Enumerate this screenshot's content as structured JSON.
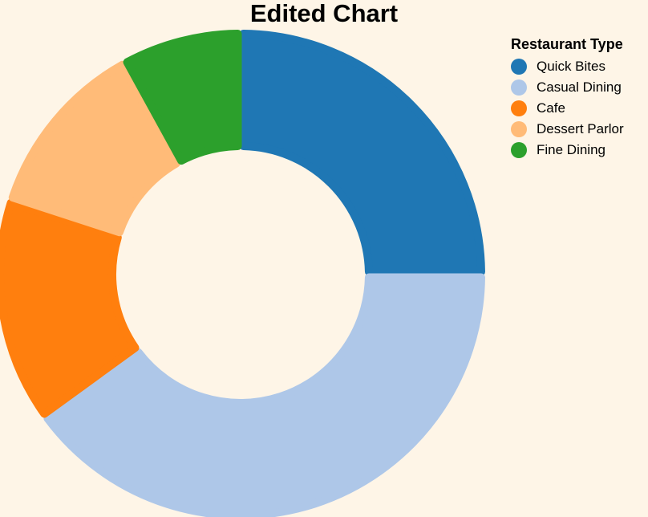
{
  "chart_data": {
    "type": "pie",
    "title": "Edited Chart",
    "legend_title": "Restaurant Type",
    "legend_position": "top-right",
    "categories": [
      "Quick Bites",
      "Casual Dining",
      "Cafe",
      "Dessert Parlor",
      "Fine Dining"
    ],
    "values": [
      25,
      40,
      15,
      12,
      8
    ],
    "colors": [
      "#1f77b4",
      "#aec7e8",
      "#ff7f0e",
      "#ffbb78",
      "#2ca02c"
    ],
    "donut": true
  }
}
